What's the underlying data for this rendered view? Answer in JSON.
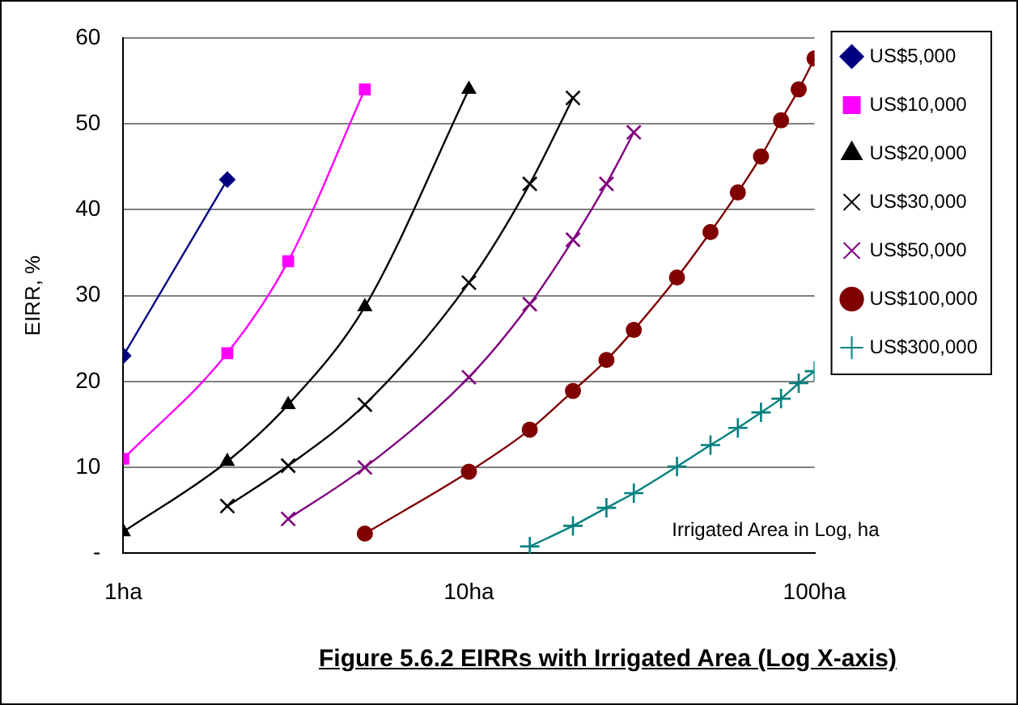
{
  "chart_data": {
    "type": "line",
    "title": "Figure 5.6.2 EIRRs with Irrigated Area (Log X-axis)",
    "xlabel": "Irrigated Area in Log, ha",
    "ylabel": "EIRR, %",
    "log": "x",
    "xlim": [
      1,
      100
    ],
    "xticks": [
      {
        "value": 1,
        "label": "1ha"
      },
      {
        "value": 10,
        "label": "10ha"
      },
      {
        "value": 100,
        "label": "100ha"
      }
    ],
    "ylim": [
      0,
      60
    ],
    "yticks": [
      {
        "value": 0,
        "label": "-"
      },
      10,
      20,
      30,
      40,
      50,
      60
    ],
    "grid": "y",
    "legend": "right",
    "line_style": "solid",
    "series": [
      {
        "name": "US$5,000",
        "color": "#000080",
        "marker": "diamond",
        "x": [
          1,
          2
        ],
        "values": [
          23,
          43.5
        ]
      },
      {
        "name": "US$10,000",
        "color": "#ff00ff",
        "marker": "square",
        "x": [
          1,
          2,
          3,
          5
        ],
        "values": [
          11,
          23.3,
          34,
          54
        ]
      },
      {
        "name": "US$20,000",
        "color": "#000000",
        "marker": "triangle",
        "x": [
          1,
          2,
          3,
          5,
          10
        ],
        "values": [
          2.5,
          10.7,
          17.3,
          28.7,
          54
        ]
      },
      {
        "name": "US$30,000",
        "color": "#000000",
        "marker": "cross",
        "x": [
          2,
          3,
          5,
          10,
          15,
          20
        ],
        "values": [
          5.5,
          10.2,
          17.3,
          31.5,
          43,
          53
        ]
      },
      {
        "name": "US$50,000",
        "color": "#800080",
        "marker": "cross",
        "x": [
          3,
          5,
          10,
          15,
          20,
          25,
          30
        ],
        "values": [
          4,
          10,
          20.5,
          29,
          36.5,
          43,
          49
        ]
      },
      {
        "name": "US$100,000",
        "color": "#800000",
        "marker": "circle",
        "x": [
          5,
          10,
          15,
          20,
          25,
          30,
          40,
          50,
          60,
          70,
          80,
          90,
          100
        ],
        "values": [
          2.3,
          9.5,
          14.4,
          18.9,
          22.5,
          26,
          32.1,
          37.4,
          42,
          46.2,
          50.4,
          54,
          57.6
        ]
      },
      {
        "name": "US$300,000",
        "color": "#008080",
        "marker": "plus",
        "x": [
          15,
          20,
          25,
          30,
          40,
          50,
          60,
          70,
          80,
          90,
          100
        ],
        "values": [
          0.8,
          3.2,
          5.3,
          7,
          10.1,
          12.6,
          14.6,
          16.4,
          18,
          19.8,
          21.2
        ]
      }
    ]
  }
}
